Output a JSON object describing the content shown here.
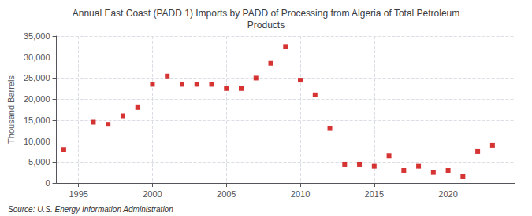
{
  "chart_data": {
    "type": "scatter",
    "title": "Annual East Coast (PADD 1) Imports by PADD of Processing from Algeria of Total Petroleum\nProducts",
    "ylabel": "Thousand Barrels",
    "annotations": [
      "Source: U.S. Energy Information Administration"
    ],
    "x": [
      1994,
      1996,
      1997,
      1998,
      1999,
      2000,
      2001,
      2002,
      2003,
      2004,
      2005,
      2006,
      2007,
      2008,
      2009,
      2010,
      2011,
      2012,
      2013,
      2014,
      2015,
      2016,
      2017,
      2018,
      2019,
      2020,
      2021,
      2022,
      2023
    ],
    "values": [
      8000,
      14500,
      14000,
      16000,
      18000,
      23500,
      25500,
      23500,
      23500,
      23500,
      22500,
      22500,
      25000,
      28500,
      32500,
      24500,
      21000,
      13000,
      4500,
      4500,
      4000,
      6500,
      3000,
      4000,
      2500,
      3000,
      1500,
      7500,
      9000
    ],
    "color": "#cc0000",
    "marker": "square",
    "xlim": [
      1993.5,
      2024.5
    ],
    "xticks": [
      1995,
      2000,
      2005,
      2010,
      2015,
      2020
    ],
    "ylim": [
      0,
      35000
    ],
    "yticks": [
      0,
      {
        "value": 5000,
        "label": "5,000"
      },
      {
        "value": 10000,
        "label": "10,000"
      },
      {
        "value": 15000,
        "label": "15,000"
      },
      {
        "value": 20000,
        "label": "20,000"
      },
      {
        "value": 25000,
        "label": "25,000"
      },
      {
        "value": 30000,
        "label": "30,000"
      },
      {
        "value": 35000,
        "label": "35,000"
      }
    ],
    "grid": true
  }
}
